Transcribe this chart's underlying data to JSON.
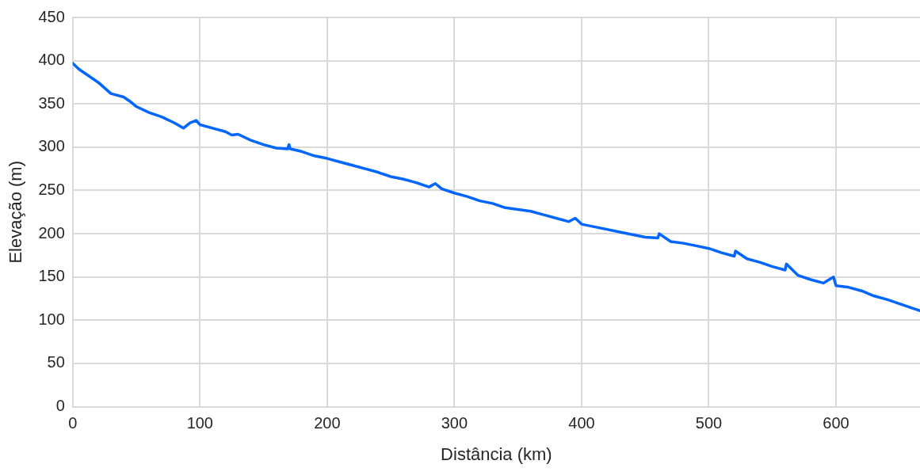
{
  "chart_data": {
    "type": "line",
    "xlabel": "Distância (km)",
    "ylabel": "Elevação (m)",
    "x": [
      0,
      5,
      10,
      20,
      30,
      40,
      45,
      50,
      60,
      70,
      80,
      87,
      92,
      97,
      100,
      110,
      120,
      125,
      130,
      140,
      150,
      160,
      169,
      170,
      171,
      180,
      190,
      200,
      210,
      220,
      230,
      240,
      250,
      260,
      270,
      280,
      285,
      290,
      300,
      310,
      320,
      330,
      340,
      350,
      360,
      370,
      380,
      390,
      395,
      400,
      410,
      420,
      430,
      440,
      450,
      460,
      461,
      470,
      480,
      490,
      500,
      510,
      520,
      521,
      530,
      540,
      550,
      560,
      561,
      570,
      580,
      590,
      598,
      600,
      610,
      620,
      630,
      640,
      650,
      660,
      666
    ],
    "series": [
      {
        "color": "#0066ff",
        "values": [
          397,
          390,
          385,
          375,
          362,
          358,
          353,
          347,
          340,
          335,
          328,
          322,
          328,
          331,
          326,
          322,
          318,
          314,
          315,
          308,
          303,
          299,
          298,
          303,
          298,
          295,
          290,
          287,
          283,
          279,
          275,
          271,
          266,
          263,
          259,
          254,
          258,
          252,
          247,
          243,
          238,
          235,
          230,
          228,
          226,
          222,
          218,
          214,
          218,
          211,
          208,
          205,
          202,
          199,
          196,
          195,
          200,
          191,
          189,
          186,
          183,
          178,
          174,
          180,
          171,
          167,
          162,
          158,
          165,
          152,
          147,
          143,
          150,
          140,
          138,
          134,
          128,
          124,
          119,
          114,
          111
        ]
      }
    ],
    "xlim": [
      0,
      666
    ],
    "xticks": [
      0,
      100,
      200,
      300,
      400,
      500,
      600
    ],
    "ylim": [
      0,
      450
    ],
    "yticks": [
      0,
      50,
      100,
      150,
      200,
      250,
      300,
      350,
      400,
      450
    ],
    "grid": true,
    "legend": false,
    "marker": "none",
    "line_style": "solid"
  }
}
